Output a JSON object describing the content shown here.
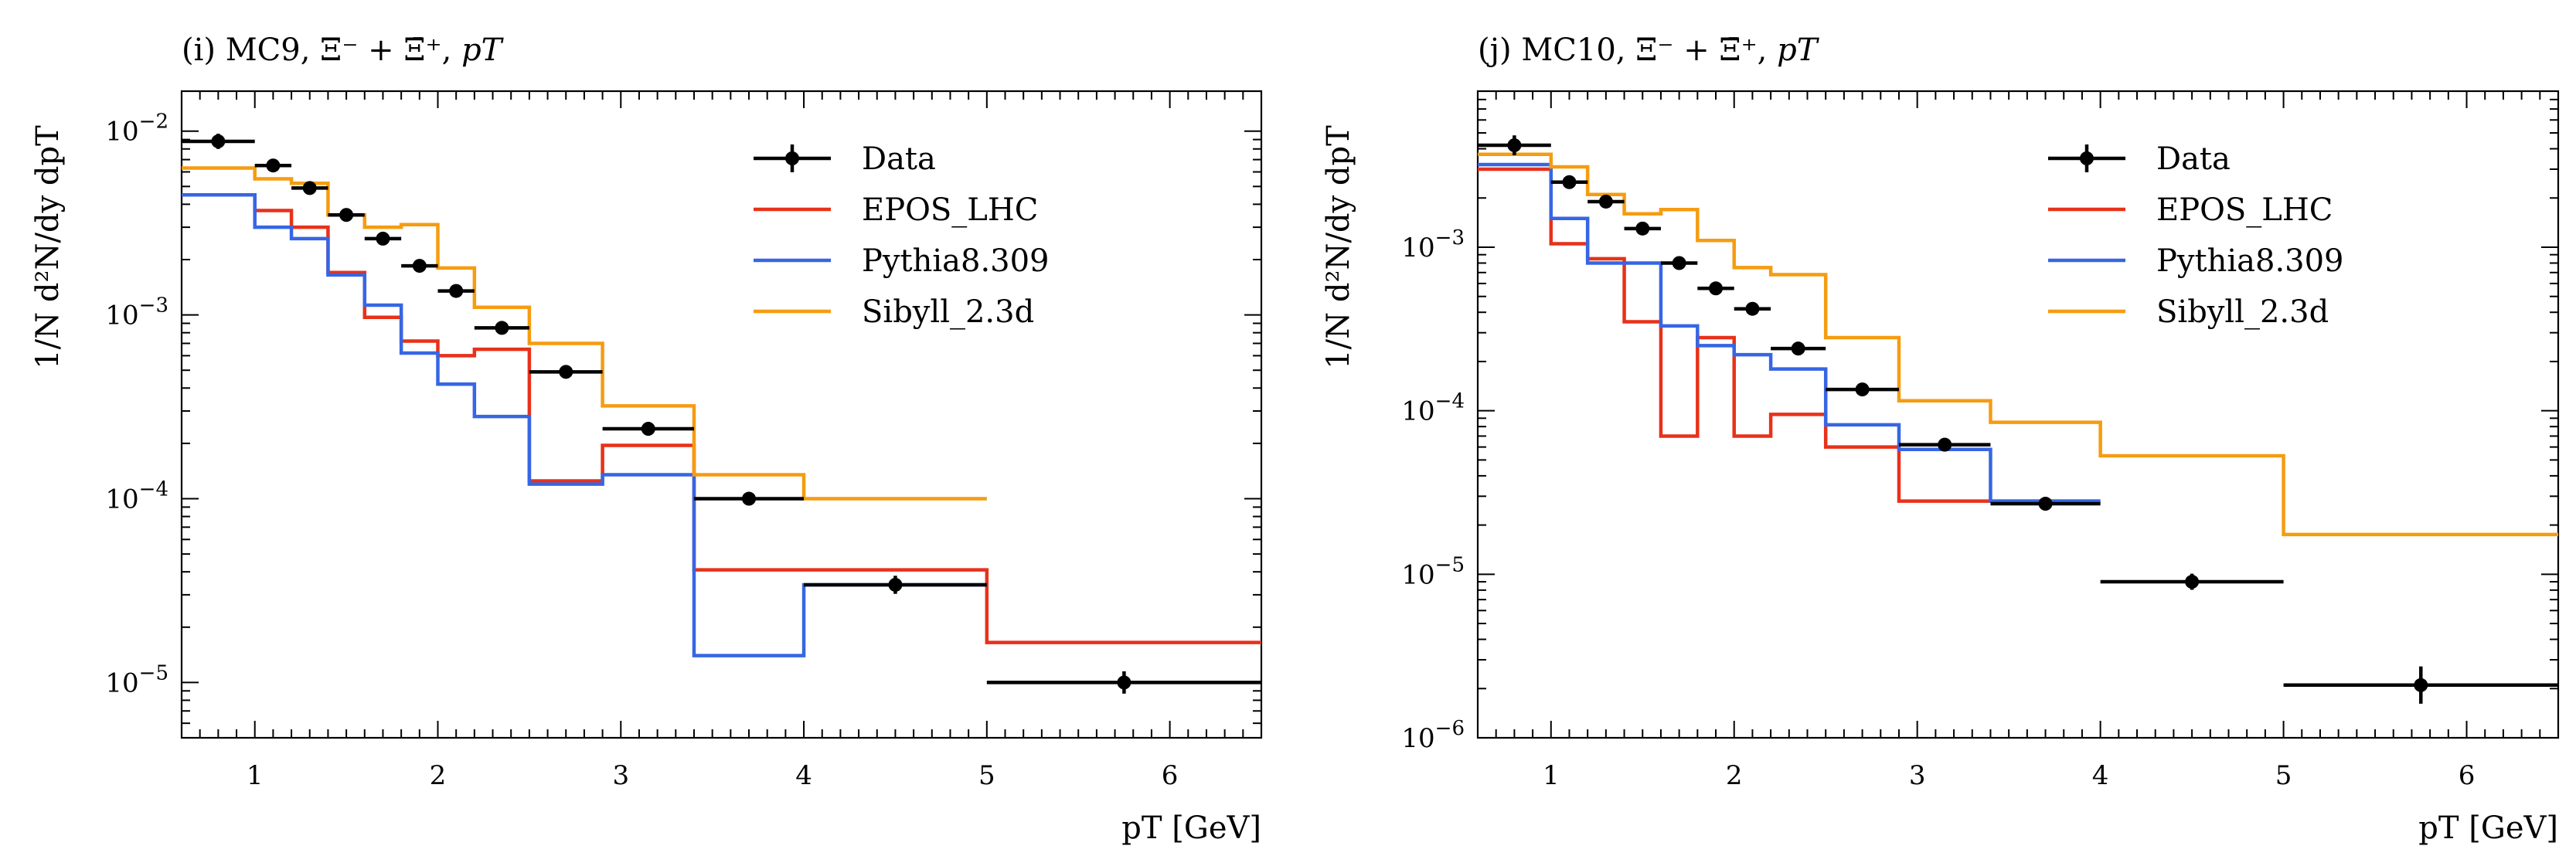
{
  "chart_data": [
    {
      "type": "line",
      "title": "(i) MC9, Ξ⁻ + Ξ̄⁺, pT",
      "title_parts": {
        "label": "(i) MC9, ",
        "particles": "Ξ⁻ + Ξ̄⁺, ",
        "var": "pT"
      },
      "ylabel": "1/N d²N/dy dpT",
      "xlabel": "pT [GeV]",
      "xlim": [
        0.6,
        6.5
      ],
      "ylim": [
        5e-06,
        0.0165
      ],
      "log_y": true,
      "x_ticks": [
        1,
        2,
        3,
        4,
        5,
        6
      ],
      "y_tick_exps": [
        -5,
        -4,
        -3,
        -2
      ],
      "legend_position": "top-right",
      "edges": [
        0.6,
        1.0,
        1.2,
        1.4,
        1.6,
        1.8,
        2.0,
        2.2,
        2.5,
        2.9,
        3.4,
        4.0,
        5.0,
        6.5
      ],
      "data": {
        "name": "Data",
        "color": "#000000",
        "x": [
          0.8,
          1.1,
          1.3,
          1.5,
          1.7,
          1.9,
          2.1,
          2.35,
          2.7,
          3.15,
          3.7,
          4.5,
          5.75
        ],
        "xerr": [
          0.2,
          0.1,
          0.1,
          0.1,
          0.1,
          0.1,
          0.1,
          0.15,
          0.2,
          0.25,
          0.3,
          0.5,
          0.75
        ],
        "y": [
          0.0088,
          0.0065,
          0.0049,
          0.0035,
          0.0026,
          0.00185,
          0.00135,
          0.00085,
          0.00049,
          0.00024,
          0.0001,
          3.4e-05,
          1e-05
        ],
        "yerr_rel": [
          0.1,
          0.08,
          0.08,
          0.08,
          0.08,
          0.08,
          0.08,
          0.08,
          0.08,
          0.09,
          0.08,
          0.12,
          0.15
        ]
      },
      "series": [
        {
          "name": "EPOS_LHC",
          "color": "#e8311a",
          "values": [
            0.0045,
            0.0037,
            0.003,
            0.0017,
            0.00097,
            0.00072,
            0.0006,
            0.00065,
            0.000125,
            0.000195,
            4.1e-05,
            4.1e-05,
            1.65e-05
          ],
          "slope_from": 11
        },
        {
          "name": "Pythia8.309",
          "color": "#3666e3",
          "values": [
            0.0045,
            0.003,
            0.0026,
            0.00165,
            0.00113,
            0.00062,
            0.00042,
            0.00028,
            0.00012,
            0.000135,
            1.4e-05,
            3.4e-05
          ],
          "slope_from": null
        },
        {
          "name": "Sibyll_2.3d",
          "color": "#f59c11",
          "values": [
            0.0063,
            0.0055,
            0.0052,
            0.0035,
            0.003,
            0.0031,
            0.0018,
            0.0011,
            0.0007,
            0.00032,
            0.000135,
            0.0001
          ],
          "slope_from": null
        }
      ]
    },
    {
      "type": "line",
      "title": "(j) MC10, Ξ⁻ + Ξ̄⁺, pT",
      "title_parts": {
        "label": "(j) MC10, ",
        "particles": "Ξ⁻ + Ξ̄⁺, ",
        "var": "pT"
      },
      "ylabel": "1/N d²N/dy dpT",
      "xlabel": "pT [GeV]",
      "xlim": [
        0.6,
        6.5
      ],
      "ylim": [
        1e-06,
        0.009
      ],
      "log_y": true,
      "x_ticks": [
        1,
        2,
        3,
        4,
        5,
        6
      ],
      "y_tick_exps": [
        -6,
        -5,
        -4,
        -3
      ],
      "legend_position": "top-right",
      "edges": [
        0.6,
        1.0,
        1.2,
        1.4,
        1.6,
        1.8,
        2.0,
        2.2,
        2.5,
        2.9,
        3.4,
        4.0,
        5.0,
        6.5
      ],
      "data": {
        "name": "Data",
        "color": "#000000",
        "x": [
          0.8,
          1.1,
          1.3,
          1.5,
          1.7,
          1.9,
          2.1,
          2.35,
          2.7,
          3.15,
          3.7,
          4.5,
          5.75
        ],
        "xerr": [
          0.2,
          0.1,
          0.1,
          0.1,
          0.1,
          0.1,
          0.1,
          0.15,
          0.2,
          0.25,
          0.3,
          0.5,
          0.75
        ],
        "y": [
          0.0042,
          0.0025,
          0.0019,
          0.0013,
          0.0008,
          0.00056,
          0.00042,
          0.00024,
          0.000135,
          6.2e-05,
          2.7e-05,
          9e-06,
          2.1e-06
        ],
        "yerr_rel": [
          0.15,
          0.08,
          0.08,
          0.08,
          0.08,
          0.08,
          0.08,
          0.08,
          0.08,
          0.1,
          0.1,
          0.12,
          0.3
        ]
      },
      "series": [
        {
          "name": "EPOS_LHC",
          "color": "#e8311a",
          "values": [
            0.003,
            0.00105,
            0.00085,
            0.00035,
            7e-05,
            0.00028,
            7e-05,
            9.5e-05,
            6e-05,
            2.8e-05,
            2.8e-05,
            null,
            null
          ],
          "slope_from": 8
        },
        {
          "name": "Pythia8.309",
          "color": "#3666e3",
          "values": [
            0.0032,
            0.0015,
            0.0008,
            0.0008,
            0.00033,
            0.00025,
            0.00022,
            0.00018,
            8.2e-05,
            5.8e-05,
            2.8e-05
          ],
          "slope_from": null
        },
        {
          "name": "Sibyll_2.3d",
          "color": "#f59c11",
          "values": [
            0.0037,
            0.0031,
            0.0021,
            0.0016,
            0.0017,
            0.0011,
            0.00075,
            0.00068,
            0.00028,
            0.000115,
            8.5e-05,
            5.3e-05,
            1.75e-05
          ],
          "slope_from": null
        }
      ]
    }
  ]
}
